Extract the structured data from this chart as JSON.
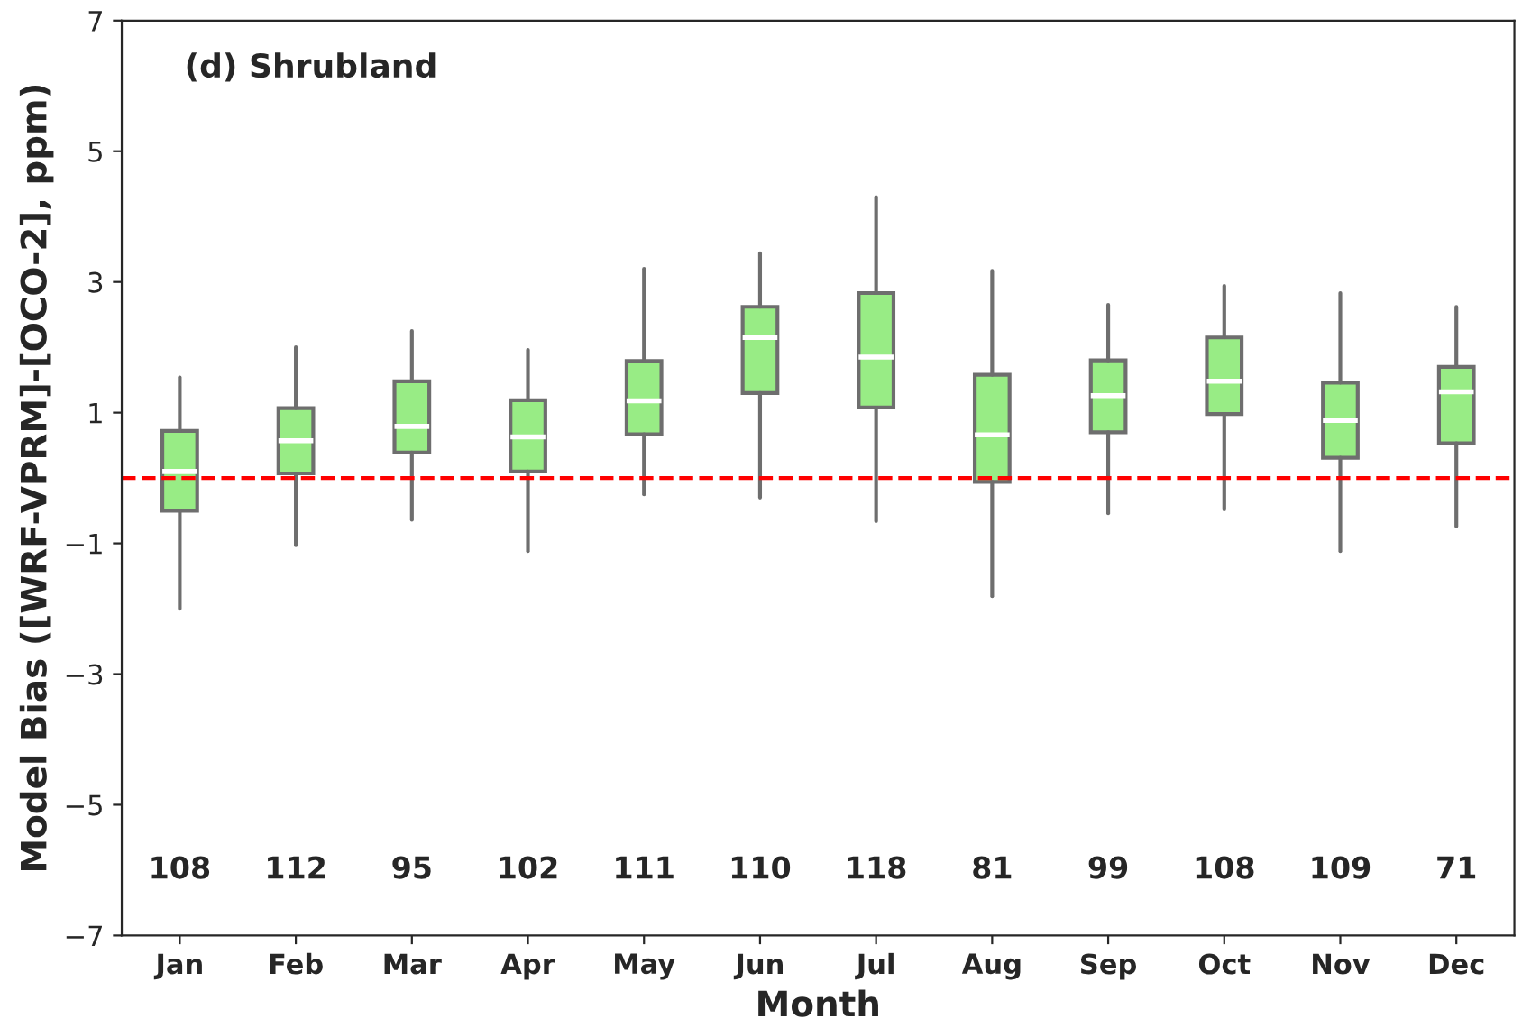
{
  "chart_data": {
    "type": "box",
    "title": "(d) Shrubland",
    "xlabel": "Month",
    "ylabel": "Model Bias ([WRF-VPRM]-[OCO-2], ppm)",
    "categories": [
      "Jan",
      "Feb",
      "Mar",
      "Apr",
      "May",
      "Jun",
      "Jul",
      "Aug",
      "Sep",
      "Oct",
      "Nov",
      "Dec"
    ],
    "color": "#98ec85",
    "boxes": [
      {
        "low": -2.0,
        "q1": -0.5,
        "median": 0.1,
        "q3": 0.72,
        "high": 1.54
      },
      {
        "low": -1.03,
        "q1": 0.07,
        "median": 0.57,
        "q3": 1.07,
        "high": 2.0
      },
      {
        "low": -0.64,
        "q1": 0.39,
        "median": 0.79,
        "q3": 1.48,
        "high": 2.25
      },
      {
        "low": -1.12,
        "q1": 0.1,
        "median": 0.63,
        "q3": 1.19,
        "high": 1.96
      },
      {
        "low": -0.25,
        "q1": 0.67,
        "median": 1.18,
        "q3": 1.79,
        "high": 3.2
      },
      {
        "low": -0.3,
        "q1": 1.3,
        "median": 2.15,
        "q3": 2.62,
        "high": 3.44
      },
      {
        "low": -0.66,
        "q1": 1.08,
        "median": 1.85,
        "q3": 2.83,
        "high": 4.3
      },
      {
        "low": -1.81,
        "q1": -0.06,
        "median": 0.66,
        "q3": 1.58,
        "high": 3.17
      },
      {
        "low": -0.54,
        "q1": 0.7,
        "median": 1.26,
        "q3": 1.8,
        "high": 2.65
      },
      {
        "low": -0.48,
        "q1": 0.98,
        "median": 1.48,
        "q3": 2.15,
        "high": 2.94
      },
      {
        "low": -1.12,
        "q1": 0.31,
        "median": 0.88,
        "q3": 1.46,
        "high": 2.83
      },
      {
        "low": -0.74,
        "q1": 0.53,
        "median": 1.32,
        "q3": 1.7,
        "high": 2.62
      }
    ],
    "ylim": [
      -7,
      7
    ],
    "yticks": [
      {
        "value": -7,
        "label": "−7"
      },
      {
        "value": -5,
        "label": "−5"
      },
      {
        "value": -3,
        "label": "−3"
      },
      {
        "value": -1,
        "label": "−1"
      },
      1,
      3,
      5,
      7
    ],
    "ref_lines": [
      {
        "axis": "y",
        "value": 0,
        "color": "#ff0000",
        "line_style": "dashed"
      }
    ],
    "annotations": [
      "108",
      "112",
      "95",
      "102",
      "111",
      "110",
      "118",
      "81",
      "99",
      "108",
      "109",
      "71"
    ],
    "grid": false,
    "legend": false
  }
}
